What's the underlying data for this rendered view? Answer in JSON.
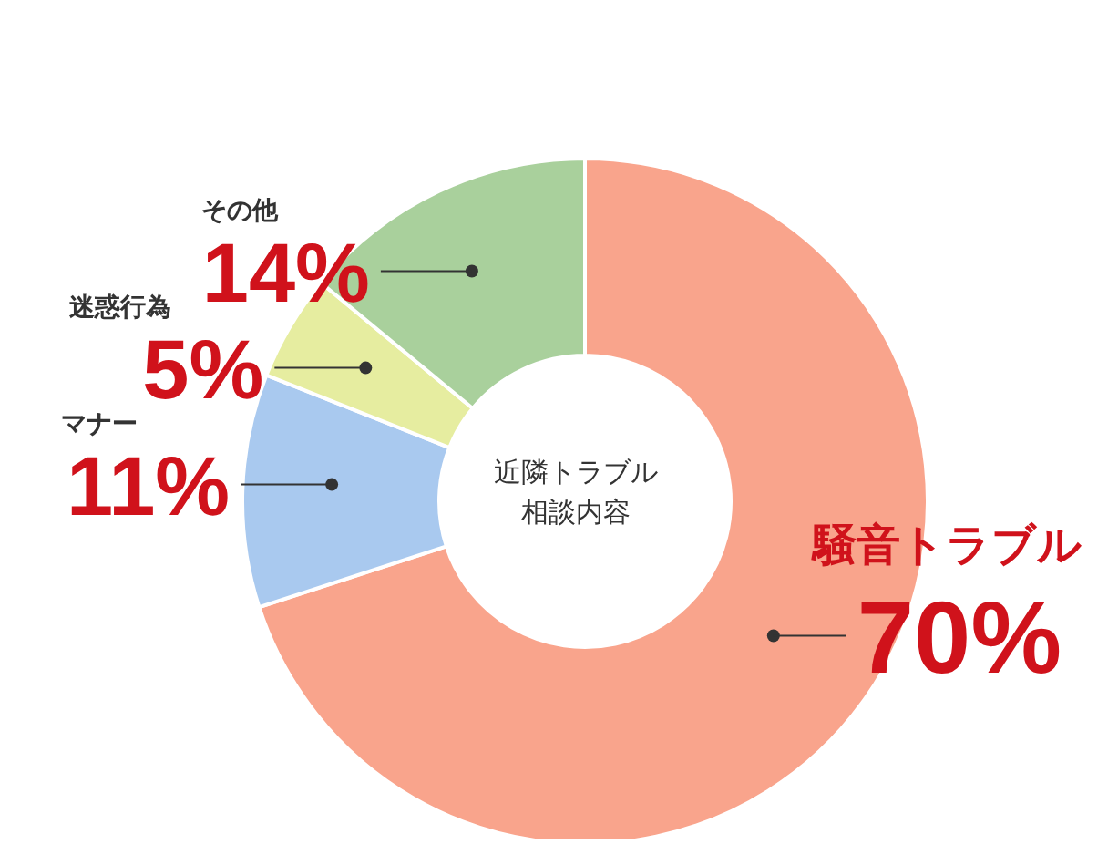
{
  "chart_data": {
    "type": "donut",
    "title": "近隣トラブル",
    "subtitle": "相談内容",
    "value_labels": [
      "70%",
      "11%",
      "5%",
      "14%"
    ],
    "categories": [
      "騒音トラブル",
      "マナー",
      "迷惑行為",
      "その他"
    ],
    "values": [
      70,
      11,
      5,
      14
    ],
    "colors": [
      "#f9a48c",
      "#a9c9ef",
      "#e6eda0",
      "#a9d09c"
    ],
    "data_labels": true
  }
}
